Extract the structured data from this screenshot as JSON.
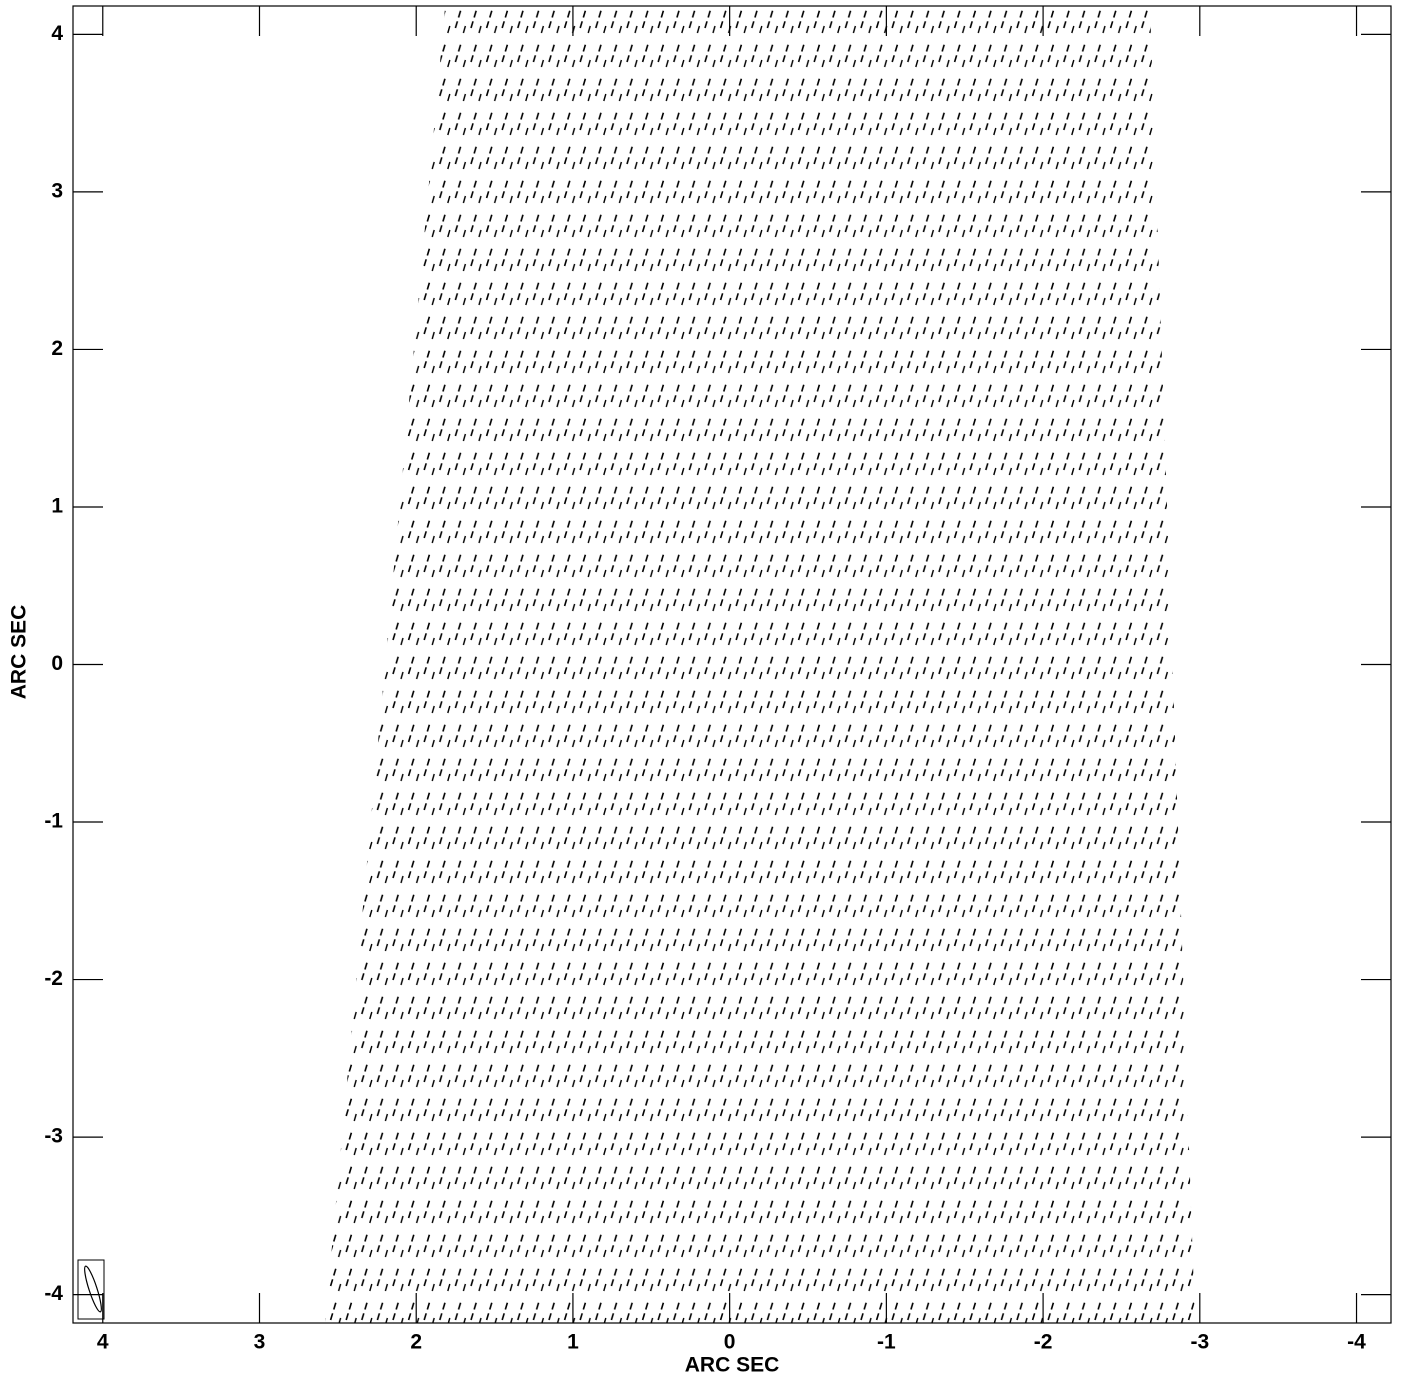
{
  "chart_data": {
    "type": "contour",
    "xlabel": "ARC SEC",
    "ylabel": "ARC SEC",
    "xlim": [
      4.19,
      -4.22
    ],
    "ylim": [
      -4.18,
      4.18
    ],
    "xticks": [
      4,
      3,
      2,
      1,
      0,
      -1,
      -2,
      -3,
      -4
    ],
    "yticks": [
      -4,
      -3,
      -2,
      -1,
      0,
      1,
      2,
      3,
      4
    ]
  }
}
